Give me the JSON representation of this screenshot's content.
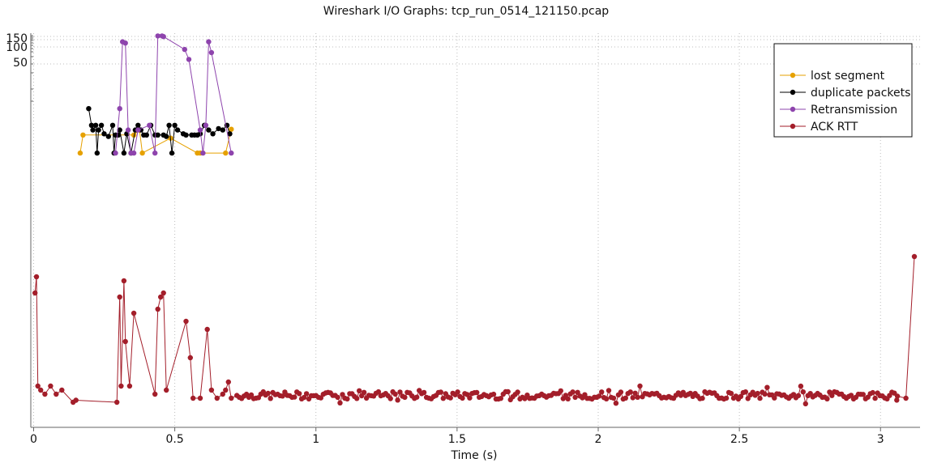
{
  "chart_data": {
    "type": "line",
    "title": "Wireshark I/O Graphs: tcp_run_0514_121150.pcap",
    "xlabel": "Time (s)",
    "ylabel": "",
    "xlim": [
      -0.01,
      3.14
    ],
    "x_ticks": [
      0,
      0.5,
      1,
      1.5,
      2,
      2.5,
      3
    ],
    "x_tick_labels": [
      "0",
      "0.5",
      "1",
      "1.5",
      "2",
      "2.5",
      "3"
    ],
    "y_scale": "log",
    "y_tick_labels": [
      "150",
      "100",
      "50"
    ],
    "grid": true,
    "legend_position": "top-right",
    "series": [
      {
        "name": "lost segment",
        "color": "#e6a100",
        "x": [
          0.165,
          0.175,
          0.355,
          0.375,
          0.385,
          0.485,
          0.58,
          0.59,
          0.68,
          0.7
        ],
        "y": [
          0.0005,
          0.0035,
          0.0035,
          0.006,
          0.0005,
          0.0025,
          0.0005,
          0.0005,
          0.0005,
          0.0065
        ]
      },
      {
        "name": "duplicate packets",
        "color": "#000000",
        "x": [
          0.195,
          0.205,
          0.21,
          0.22,
          0.225,
          0.23,
          0.24,
          0.25,
          0.265,
          0.28,
          0.285,
          0.29,
          0.3,
          0.305,
          0.32,
          0.33,
          0.345,
          0.36,
          0.37,
          0.38,
          0.39,
          0.4,
          0.415,
          0.43,
          0.44,
          0.46,
          0.47,
          0.48,
          0.49,
          0.5,
          0.51,
          0.53,
          0.54,
          0.56,
          0.57,
          0.58,
          0.59,
          0.605,
          0.62,
          0.635,
          0.655,
          0.67,
          0.685,
          0.695
        ],
        "y": [
          0.06,
          0.01,
          0.006,
          0.01,
          0.0005,
          0.006,
          0.01,
          0.004,
          0.003,
          0.01,
          0.0005,
          0.0035,
          0.0035,
          0.006,
          0.0005,
          0.004,
          0.0005,
          0.006,
          0.01,
          0.006,
          0.0035,
          0.0035,
          0.01,
          0.0035,
          0.0035,
          0.0035,
          0.003,
          0.01,
          0.0005,
          0.01,
          0.006,
          0.004,
          0.0035,
          0.0035,
          0.0035,
          0.0035,
          0.004,
          0.01,
          0.006,
          0.004,
          0.007,
          0.006,
          0.01,
          0.004
        ]
      },
      {
        "name": "Retransmission",
        "color": "#8e44ad",
        "x": [
          0.29,
          0.305,
          0.315,
          0.325,
          0.335,
          0.345,
          0.355,
          0.37,
          0.41,
          0.43,
          0.44,
          0.455,
          0.46,
          0.535,
          0.55,
          0.59,
          0.6,
          0.61,
          0.62,
          0.63,
          0.7
        ],
        "y": [
          0.0005,
          0.06,
          80,
          70,
          0.006,
          0.0005,
          0.0005,
          0.006,
          0.01,
          0.0005,
          150,
          150,
          140,
          35,
          12,
          0.006,
          0.0005,
          0.01,
          80,
          25,
          0.0005
        ]
      },
      {
        "name": "ACK RTT",
        "color": "#a31e2a",
        "points": "generated",
        "x": [
          0.005,
          0.01,
          0.015,
          0.025,
          0.04,
          0.06,
          0.08,
          0.1,
          0.14,
          0.15,
          0.295,
          0.305,
          0.31,
          0.32,
          0.325,
          0.34,
          0.355,
          0.43,
          0.44,
          0.45,
          0.46,
          0.47,
          0.54,
          0.555,
          0.565,
          0.59,
          0.615,
          0.63,
          0.65,
          0.67,
          0.68,
          0.69,
          0.7,
          0.72,
          0.75,
          0.8,
          0.85,
          0.9,
          1.0,
          1.1,
          1.2,
          1.3,
          1.4,
          1.5,
          1.6,
          1.7,
          1.8,
          1.9,
          2.0,
          2.1,
          2.2,
          2.3,
          2.4,
          2.5,
          2.6,
          2.7,
          2.8,
          2.9,
          3.0,
          3.06,
          3.09,
          3.12
        ],
        "y": [
          0.3,
          0.34,
          0.07,
          0.06,
          0.05,
          0.07,
          0.05,
          0.06,
          0.03,
          0.035,
          0.03,
          0.29,
          0.07,
          0.33,
          0.18,
          0.07,
          0.25,
          0.05,
          0.26,
          0.29,
          0.3,
          0.06,
          0.23,
          0.14,
          0.04,
          0.04,
          0.21,
          0.06,
          0.04,
          0.05,
          0.06,
          0.08,
          0.04,
          0.05,
          0.04,
          0.045,
          0.04,
          0.05,
          0.045,
          0.04,
          0.05,
          0.045,
          0.04,
          0.05,
          0.045,
          0.04,
          0.05,
          0.04,
          0.045,
          0.04,
          0.05,
          0.045,
          0.04,
          0.05,
          0.045,
          0.04,
          0.05,
          0.045,
          0.04,
          0.045,
          0.04,
          0.39
        ]
      }
    ]
  }
}
